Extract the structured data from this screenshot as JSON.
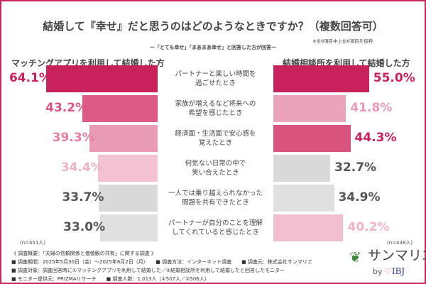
{
  "chart_data": {
    "type": "bar",
    "title": "結婚して『幸せ』だと思うのはどのようなときですか？（複数回答可）",
    "subtitle": "ー「とても幸せ」「まあまあ幸せ」と回答した方が回答ー",
    "note": "※全9項目中上位6項目を抜粋",
    "categories": [
      "パートナーと楽しい時間を\n過ごせたとき",
      "家族が増えるなど将来への\n希望を感じたとき",
      "経済面・生活面で安心感を\n覚えたとき",
      "何気ない日常の中で\n笑い合えたとき",
      "一人では乗り越えられなかった\n問題を共有できたとき",
      "パートナーが自分のことを理解\nしてくれていると感じたとき"
    ],
    "series": [
      {
        "name": "マッチングアプリを利用して結婚した方",
        "n": "(n=451人)",
        "values": [
          64.1,
          43.2,
          39.3,
          34.4,
          33.7,
          33.0
        ],
        "colors": [
          "#c8215b",
          "#dc5a85",
          "#e99ab4",
          "#f3c3d3",
          "#d9d9d9",
          "#e0e0e0"
        ],
        "label_colors": [
          "#c8215b",
          "#d9557f",
          "#e27fa1",
          "#eeb3c7",
          "#555555",
          "#555555"
        ]
      },
      {
        "name": "結婚相談所を利用して結婚した方",
        "n": "(n=438人)",
        "values": [
          55.0,
          41.8,
          44.3,
          32.7,
          34.9,
          40.2
        ],
        "colors": [
          "#c8215b",
          "#eba3bb",
          "#d9537f",
          "#d9d9d9",
          "#e0e0e0",
          "#f1bfd0"
        ],
        "label_colors": [
          "#c8215b",
          "#e99ab5",
          "#c8215b",
          "#555555",
          "#555555",
          "#eeb3c7"
        ]
      }
    ],
    "unit": "%"
  },
  "footer": [
    "《 調査概要：「夫婦の信頼関係と価値観の共有」に関する調査 》",
    "■ 調査期間：2025年5月30日（金）～2025年6月2日（月）　　■ 調査方法：インターネット調査　　■ 調査元：株式会社サンマリエ",
    "■ 調査対象：調査回答時に①マッチングアプリを利用して結婚した／②結婚相談所を利用して結婚したと回答したモニター",
    "■ モニター提供元：PRIZMAリサーチ　　■ 調査人数：1,013人（①507人／②506人）"
  ],
  "logo": {
    "name": "サンマリエ",
    "by": "by",
    "brand": "IBJ"
  }
}
